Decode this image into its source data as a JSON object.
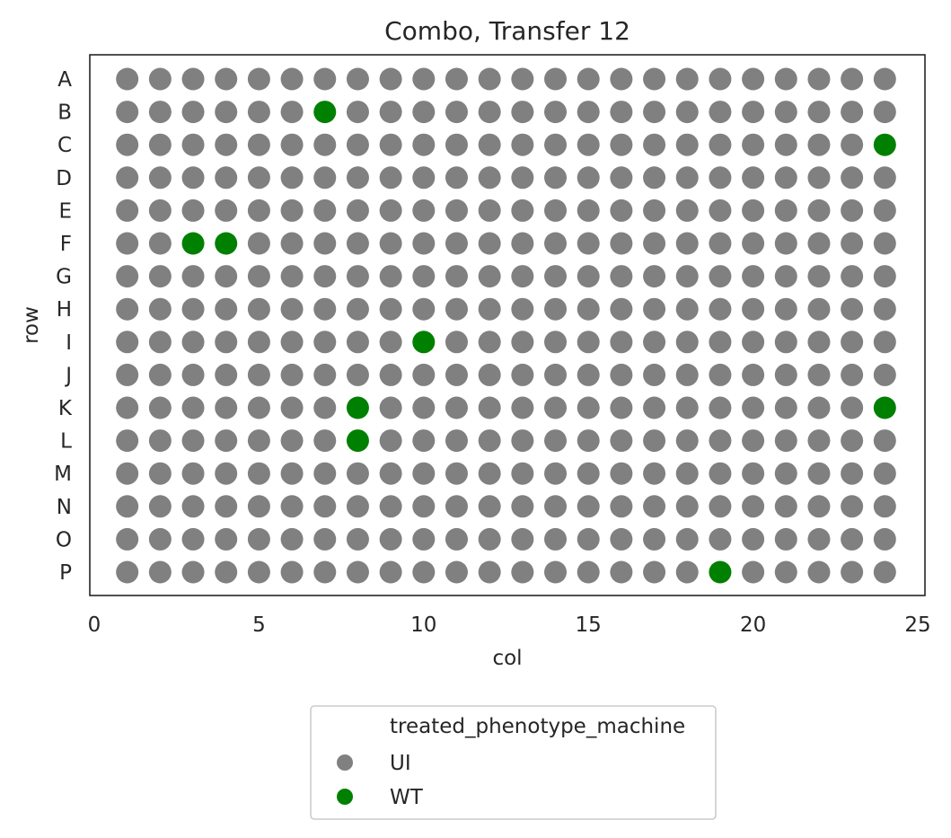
{
  "chart_data": {
    "type": "scatter",
    "title": "Combo, Transfer 12",
    "xlabel": "col",
    "ylabel": "row",
    "xlim": [
      0,
      25
    ],
    "x_ticks": [
      0,
      5,
      10,
      15,
      20,
      25
    ],
    "rows": [
      "A",
      "B",
      "C",
      "D",
      "E",
      "F",
      "G",
      "H",
      "I",
      "J",
      "K",
      "L",
      "M",
      "N",
      "O",
      "P"
    ],
    "cols": [
      1,
      2,
      3,
      4,
      5,
      6,
      7,
      8,
      9,
      10,
      11,
      12,
      13,
      14,
      15,
      16,
      17,
      18,
      19,
      20,
      21,
      22,
      23,
      24
    ],
    "grid": false,
    "legend": {
      "title": "treated_phenotype_machine",
      "placement": "below",
      "entries": [
        {
          "label": "UI",
          "color": "#808080"
        },
        {
          "label": "WT",
          "color": "#008000"
        }
      ]
    },
    "default_series": "UI",
    "series": [
      {
        "name": "UI",
        "color": "#808080",
        "points": "all wells not listed under WT"
      },
      {
        "name": "WT",
        "color": "#008000",
        "points": [
          {
            "row": "B",
            "col": 7
          },
          {
            "row": "C",
            "col": 24
          },
          {
            "row": "F",
            "col": 3
          },
          {
            "row": "F",
            "col": 4
          },
          {
            "row": "I",
            "col": 10
          },
          {
            "row": "K",
            "col": 8
          },
          {
            "row": "K",
            "col": 24
          },
          {
            "row": "L",
            "col": 8
          },
          {
            "row": "P",
            "col": 19
          }
        ]
      }
    ]
  }
}
